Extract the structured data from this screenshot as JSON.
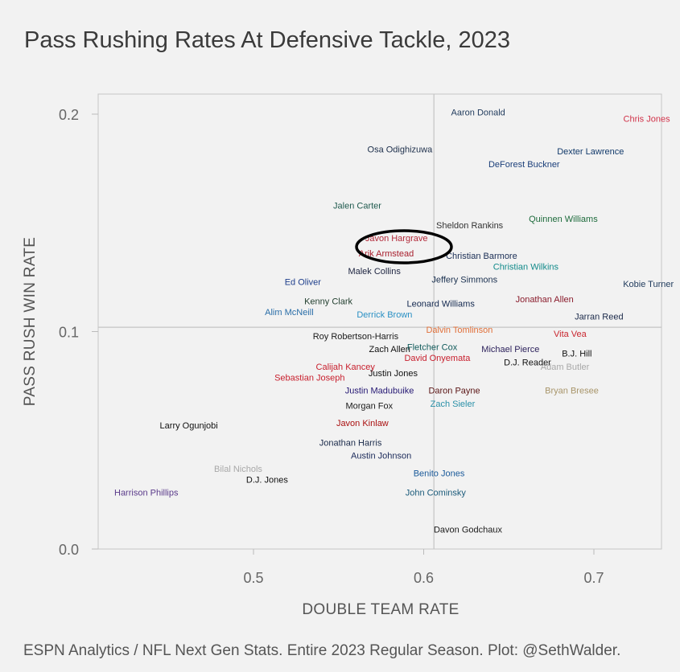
{
  "chart_data": {
    "type": "scatter",
    "title": "Pass Rushing Rates At Defensive Tackle, 2023",
    "xlabel": "DOUBLE TEAM RATE",
    "ylabel": "PASS RUSH WIN RATE",
    "xlim": [
      0.41,
      0.74
    ],
    "ylim": [
      0.0,
      0.21
    ],
    "x_ticks": [
      0.5,
      0.6,
      0.7
    ],
    "y_ticks": [
      0.0,
      0.1,
      0.2
    ],
    "x_tick_labels": [
      "0.5",
      "0.6",
      "0.7"
    ],
    "y_tick_labels": [
      "0.0",
      "0.1",
      "0.2"
    ],
    "reference_lines": {
      "x": 0.606,
      "y": 0.102
    },
    "highlight": {
      "players": [
        "Javon Hargrave",
        "Arik Armstead"
      ],
      "shape": "ellipse"
    },
    "points": [
      {
        "name": "Aaron Donald",
        "x": 0.632,
        "y": 0.201,
        "color": "#1f3a5c"
      },
      {
        "name": "Chris Jones",
        "x": 0.731,
        "y": 0.198,
        "color": "#d1334a"
      },
      {
        "name": "Osa Odighizuwa",
        "x": 0.586,
        "y": 0.184,
        "color": "#1c2e4a"
      },
      {
        "name": "Dexter Lawrence",
        "x": 0.698,
        "y": 0.183,
        "color": "#123a6b"
      },
      {
        "name": "DeForest Buckner",
        "x": 0.659,
        "y": 0.177,
        "color": "#1b3f7a"
      },
      {
        "name": "Jalen Carter",
        "x": 0.561,
        "y": 0.158,
        "color": "#1f5a4e"
      },
      {
        "name": "Sheldon Rankins",
        "x": 0.627,
        "y": 0.149,
        "color": "#333333"
      },
      {
        "name": "Quinnen Williams",
        "x": 0.682,
        "y": 0.152,
        "color": "#1e6b3c"
      },
      {
        "name": "Javon Hargrave",
        "x": 0.584,
        "y": 0.143,
        "color": "#b22a3a"
      },
      {
        "name": "Arik Armstead",
        "x": 0.578,
        "y": 0.136,
        "color": "#a8202e"
      },
      {
        "name": "Christian Barmore",
        "x": 0.634,
        "y": 0.135,
        "color": "#1a2e55"
      },
      {
        "name": "Christian Wilkins",
        "x": 0.66,
        "y": 0.13,
        "color": "#128a8a"
      },
      {
        "name": "Malek Collins",
        "x": 0.571,
        "y": 0.128,
        "color": "#1d2440"
      },
      {
        "name": "Jeffery Simmons",
        "x": 0.624,
        "y": 0.124,
        "color": "#1b3150"
      },
      {
        "name": "Ed Oliver",
        "x": 0.529,
        "y": 0.123,
        "color": "#1f3f8c"
      },
      {
        "name": "Kobie Turner",
        "x": 0.732,
        "y": 0.122,
        "color": "#1f3a5c"
      },
      {
        "name": "Kenny Clark",
        "x": 0.544,
        "y": 0.114,
        "color": "#234030"
      },
      {
        "name": "Leonard Williams",
        "x": 0.61,
        "y": 0.113,
        "color": "#13284f"
      },
      {
        "name": "Jonathan Allen",
        "x": 0.671,
        "y": 0.115,
        "color": "#8a1c2c"
      },
      {
        "name": "Alim McNeill",
        "x": 0.521,
        "y": 0.109,
        "color": "#2a6ea8"
      },
      {
        "name": "Derrick Brown",
        "x": 0.577,
        "y": 0.108,
        "color": "#2a90c4"
      },
      {
        "name": "Jarran Reed",
        "x": 0.703,
        "y": 0.107,
        "color": "#1b2a4a"
      },
      {
        "name": "Dalvin Tomlinson",
        "x": 0.621,
        "y": 0.101,
        "color": "#e0703a"
      },
      {
        "name": "Vita Vea",
        "x": 0.686,
        "y": 0.099,
        "color": "#c9262f"
      },
      {
        "name": "Roy Robertson-Harris",
        "x": 0.56,
        "y": 0.098,
        "color": "#1a1a1a"
      },
      {
        "name": "Zach Allen",
        "x": 0.58,
        "y": 0.092,
        "color": "#111111"
      },
      {
        "name": "Fletcher Cox",
        "x": 0.605,
        "y": 0.093,
        "color": "#105a5a"
      },
      {
        "name": "Michael Pierce",
        "x": 0.651,
        "y": 0.092,
        "color": "#2a1f5a"
      },
      {
        "name": "B.J. Hill",
        "x": 0.69,
        "y": 0.09,
        "color": "#111111"
      },
      {
        "name": "David Onyemata",
        "x": 0.608,
        "y": 0.088,
        "color": "#c8202e"
      },
      {
        "name": "D.J. Reader",
        "x": 0.661,
        "y": 0.086,
        "color": "#111111"
      },
      {
        "name": "Adam Butler",
        "x": 0.683,
        "y": 0.084,
        "color": "#a8a8a8"
      },
      {
        "name": "Calijah Kancey",
        "x": 0.554,
        "y": 0.084,
        "color": "#c8202e"
      },
      {
        "name": "Sebastian Joseph",
        "x": 0.533,
        "y": 0.079,
        "color": "#c8202e"
      },
      {
        "name": "Justin Jones",
        "x": 0.582,
        "y": 0.081,
        "color": "#111111"
      },
      {
        "name": "Justin Madubuike",
        "x": 0.574,
        "y": 0.073,
        "color": "#241773"
      },
      {
        "name": "Daron Payne",
        "x": 0.618,
        "y": 0.073,
        "color": "#5a1414"
      },
      {
        "name": "Bryan Bresee",
        "x": 0.687,
        "y": 0.073,
        "color": "#a8956a"
      },
      {
        "name": "Zach Sieler",
        "x": 0.617,
        "y": 0.067,
        "color": "#2a90a8"
      },
      {
        "name": "Morgan Fox",
        "x": 0.568,
        "y": 0.066,
        "color": "#1a1a1a"
      },
      {
        "name": "Javon Kinlaw",
        "x": 0.564,
        "y": 0.058,
        "color": "#aa1010"
      },
      {
        "name": "Larry Ogunjobi",
        "x": 0.462,
        "y": 0.057,
        "color": "#111111"
      },
      {
        "name": "Jonathan Harris",
        "x": 0.557,
        "y": 0.049,
        "color": "#1a2a4a"
      },
      {
        "name": "Austin Johnson",
        "x": 0.575,
        "y": 0.043,
        "color": "#1b2a5a"
      },
      {
        "name": "Bilal Nichols",
        "x": 0.491,
        "y": 0.037,
        "color": "#a8a8a8"
      },
      {
        "name": "D.J. Jones",
        "x": 0.508,
        "y": 0.032,
        "color": "#111111"
      },
      {
        "name": "Benito Jones",
        "x": 0.609,
        "y": 0.035,
        "color": "#1a5a9a"
      },
      {
        "name": "Harrison Phillips",
        "x": 0.437,
        "y": 0.026,
        "color": "#5a3a8a"
      },
      {
        "name": "John Cominsky",
        "x": 0.607,
        "y": 0.026,
        "color": "#1a5a7a"
      },
      {
        "name": "Davon Godchaux",
        "x": 0.626,
        "y": 0.009,
        "color": "#1a1a1a"
      }
    ]
  },
  "caption": "ESPN Analytics / NFL Next Gen Stats. Entire 2023 Regular Season. Plot: @SethWalder."
}
